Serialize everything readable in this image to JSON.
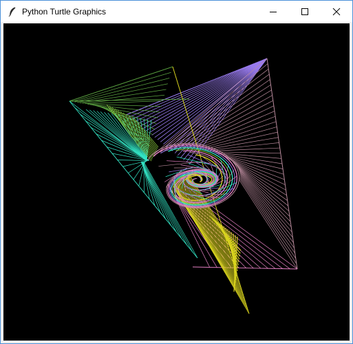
{
  "window": {
    "title": "Python Turtle Graphics",
    "icon": "feather-icon",
    "controls": [
      "minimize-icon",
      "maximize-icon",
      "close-icon"
    ]
  },
  "canvas": {
    "background": "#000000",
    "colors": {
      "green": "#5ea843",
      "yellow": "#d8d31e",
      "violet": "#9a7cf0",
      "mauve": "#b98a9c",
      "pink": "#e882c6",
      "cyan": "#33e6c6",
      "lime": "#8fd23e"
    }
  }
}
